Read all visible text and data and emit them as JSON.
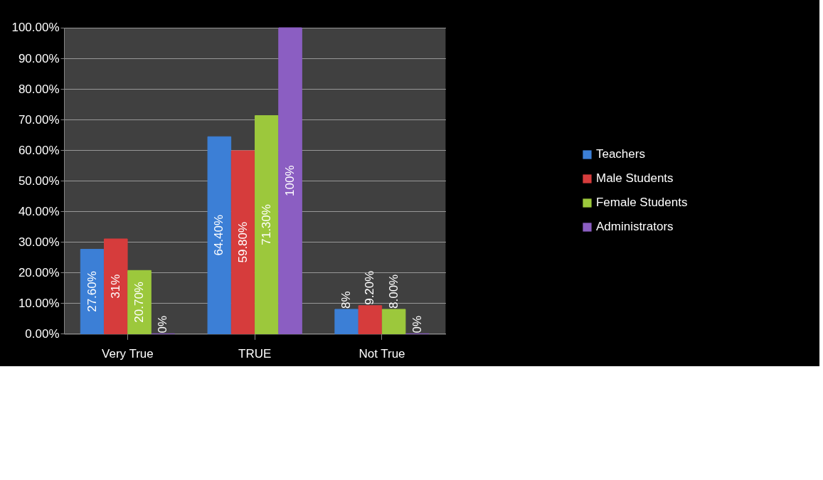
{
  "chart_data": {
    "type": "bar",
    "categories": [
      "Very True",
      "TRUE",
      "Not True"
    ],
    "series": [
      {
        "name": "Teachers",
        "color": "#3c7fd6",
        "values": [
          27.6,
          64.4,
          8
        ],
        "value_labels": [
          "27.60%",
          "64.40%",
          "8%"
        ]
      },
      {
        "name": "Male Students",
        "color": "#d63c3c",
        "values": [
          31,
          59.8,
          9.2
        ],
        "value_labels": [
          "31%",
          "59.80%",
          "9.20%"
        ]
      },
      {
        "name": "Female Students",
        "color": "#9cc83c",
        "values": [
          20.7,
          71.3,
          8.0
        ],
        "value_labels": [
          "20.70%",
          "71.30%",
          "8.00%"
        ]
      },
      {
        "name": "Administrators",
        "color": "#8b5ec2",
        "values": [
          0,
          100,
          0
        ],
        "value_labels": [
          "0%",
          "100%",
          "0%"
        ]
      }
    ],
    "ylim": [
      0,
      100
    ],
    "yticks": [
      {
        "value": 0,
        "label": "0.00%"
      },
      {
        "value": 10,
        "label": "10.00%"
      },
      {
        "value": 20,
        "label": "20.00%"
      },
      {
        "value": 30,
        "label": "30.00%"
      },
      {
        "value": 40,
        "label": "40.00%"
      },
      {
        "value": 50,
        "label": "50.00%"
      },
      {
        "value": 60,
        "label": "60.00%"
      },
      {
        "value": 70,
        "label": "70.00%"
      },
      {
        "value": 80,
        "label": "80.00%"
      },
      {
        "value": 90,
        "label": "90.00%"
      },
      {
        "value": 100,
        "label": "100.00%"
      }
    ],
    "grid": "y",
    "legend": "right"
  }
}
